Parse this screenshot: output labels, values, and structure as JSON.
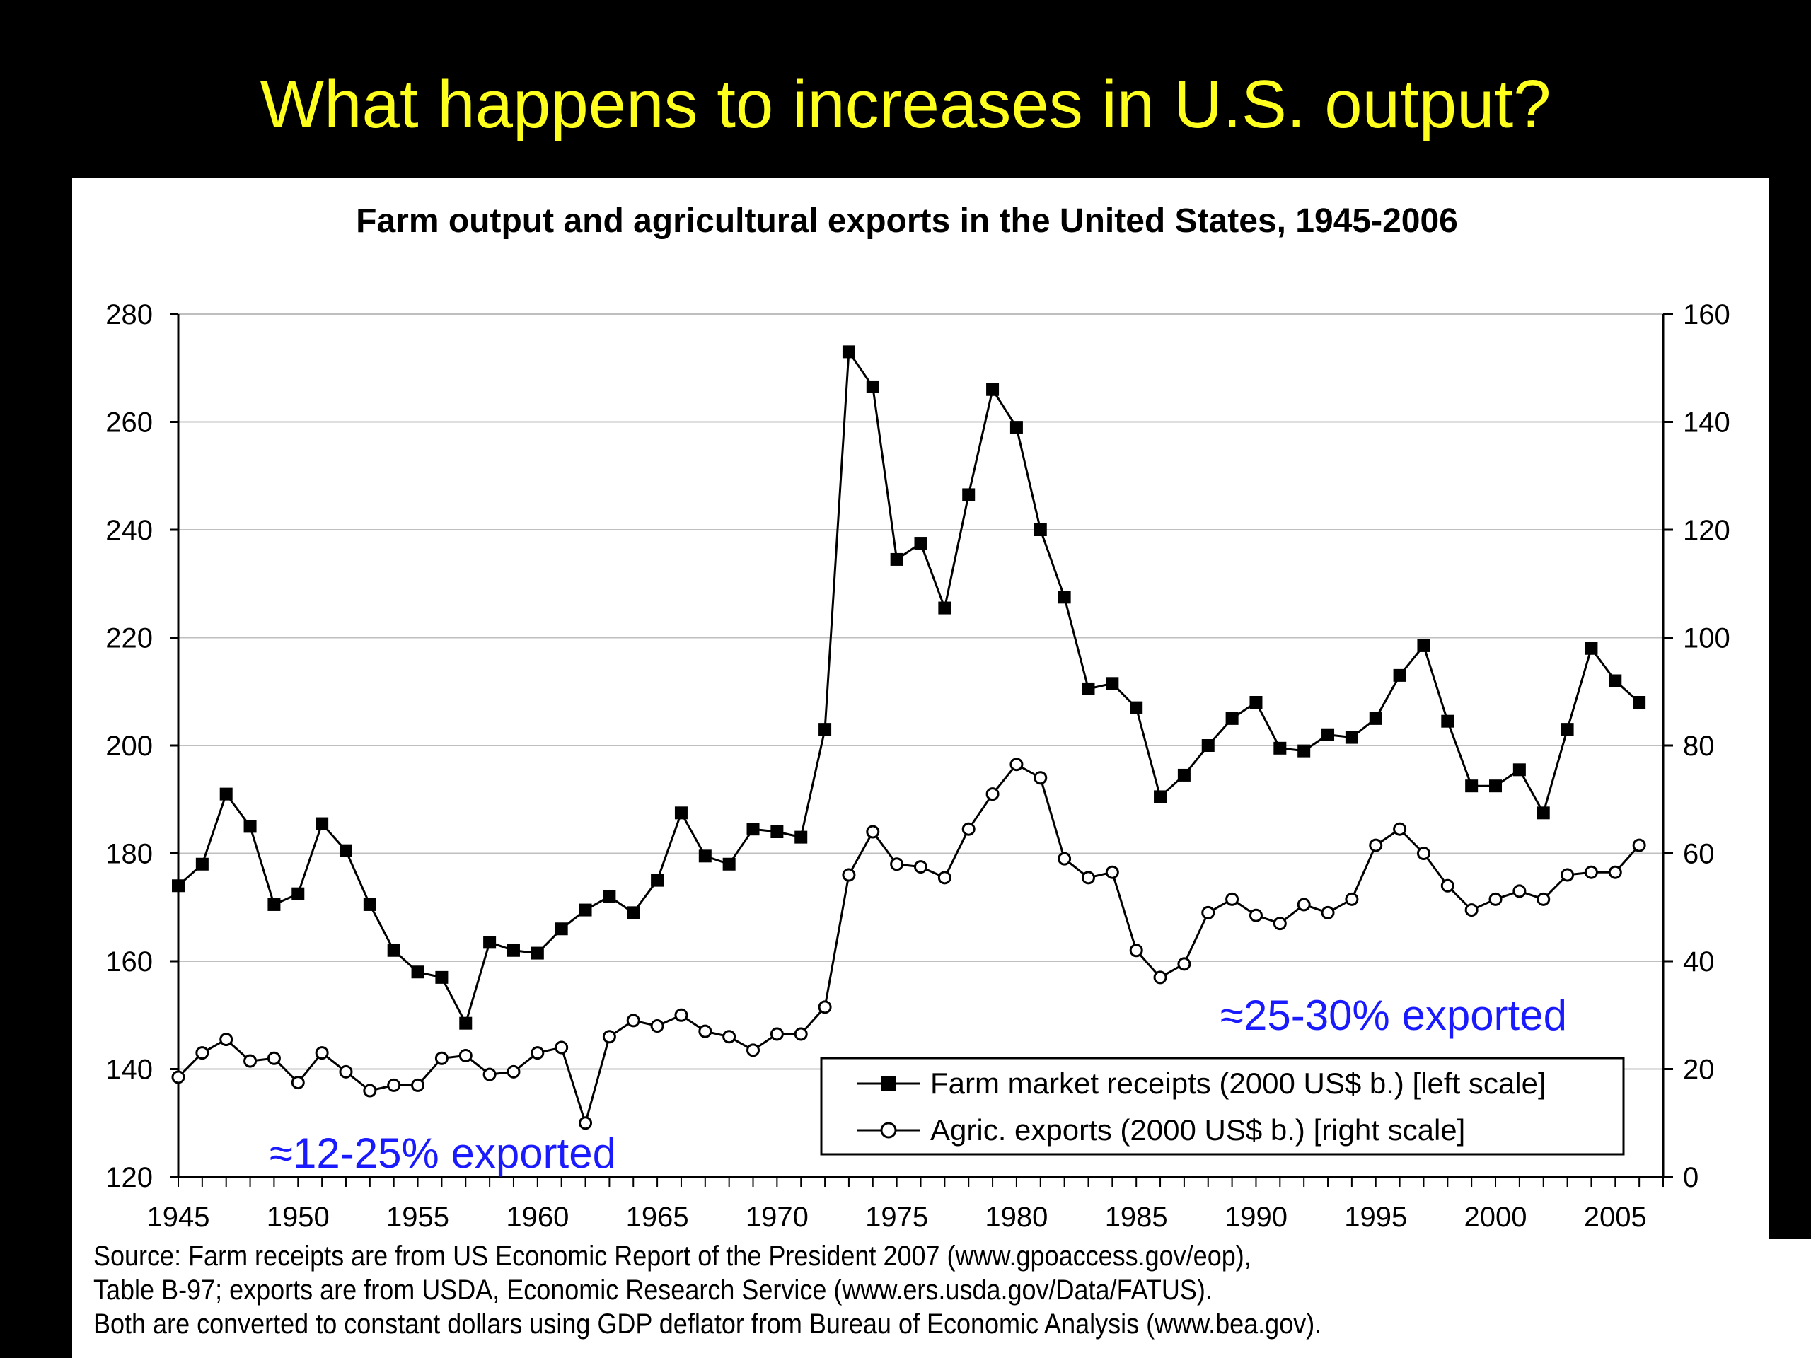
{
  "slide": {
    "title": "What happens to increases in U.S. output?",
    "source_lines": [
      "Source: Farm receipts are from US Economic Report of the President 2007 (www.gpoaccess.gov/eop),",
      "Table B-97; exports are from USDA, Economic Research Service (www.ers.usda.gov/Data/FATUS).",
      "Both are converted to constant dollars using GDP deflator from Bureau of Economic Analysis (www.bea.gov)."
    ]
  },
  "colors": {
    "background": "#000000",
    "title": "#ffff1e",
    "annotation": "#1a1aff",
    "series": "#000000",
    "grid": "#bfbfbf"
  },
  "chart_data": {
    "type": "line",
    "title": "Farm output and agricultural exports in the United States, 1945-2006",
    "xlim": [
      1945,
      2007
    ],
    "x_ticks": [
      1945,
      1950,
      1955,
      1960,
      1965,
      1970,
      1975,
      1980,
      1985,
      1990,
      1995,
      2000,
      2005
    ],
    "left_axis": {
      "ylim": [
        120,
        280
      ],
      "ticks": [
        120,
        140,
        160,
        180,
        200,
        220,
        240,
        260,
        280
      ]
    },
    "right_axis": {
      "ylim": [
        0,
        160
      ],
      "ticks": [
        0,
        20,
        40,
        60,
        80,
        100,
        120,
        140,
        160
      ]
    },
    "grid": true,
    "legend_position": "bottom-right",
    "series": [
      {
        "name": "Farm market receipts (2000 US$ b.) [left scale]",
        "axis": "left",
        "marker": "filled-square",
        "x": [
          1945,
          1946,
          1947,
          1948,
          1949,
          1950,
          1951,
          1952,
          1953,
          1954,
          1955,
          1956,
          1957,
          1958,
          1959,
          1960,
          1961,
          1962,
          1963,
          1964,
          1965,
          1966,
          1967,
          1968,
          1969,
          1970,
          1971,
          1972,
          1973,
          1974,
          1975,
          1976,
          1977,
          1978,
          1979,
          1980,
          1981,
          1982,
          1983,
          1984,
          1985,
          1986,
          1987,
          1988,
          1989,
          1990,
          1991,
          1992,
          1993,
          1994,
          1995,
          1996,
          1997,
          1998,
          1999,
          2000,
          2001,
          2002,
          2003,
          2004,
          2005,
          2006
        ],
        "values": [
          174,
          178,
          191,
          185,
          170.5,
          172.5,
          185.5,
          180.5,
          170.5,
          162,
          158,
          157,
          148.5,
          163.5,
          162,
          161.5,
          166,
          169.5,
          172,
          169,
          175,
          187.5,
          179.5,
          178,
          184.5,
          184,
          183,
          203,
          273,
          266.5,
          234.5,
          237.5,
          225.5,
          246.5,
          266,
          259,
          240,
          227.5,
          210.5,
          211.5,
          207,
          190.5,
          194.5,
          200,
          205,
          208,
          199.5,
          199,
          202,
          201.5,
          205,
          213,
          218.5,
          204.5,
          192.5,
          192.5,
          195.5,
          187.5,
          203,
          218,
          212,
          208
        ]
      },
      {
        "name": "Agric. exports (2000 US$ b.) [right scale]",
        "axis": "right",
        "marker": "open-circle",
        "x": [
          1945,
          1946,
          1947,
          1948,
          1949,
          1950,
          1951,
          1952,
          1953,
          1954,
          1955,
          1956,
          1957,
          1958,
          1959,
          1960,
          1961,
          1962,
          1963,
          1964,
          1965,
          1966,
          1967,
          1968,
          1969,
          1970,
          1971,
          1972,
          1973,
          1974,
          1975,
          1976,
          1977,
          1978,
          1979,
          1980,
          1981,
          1982,
          1983,
          1984,
          1985,
          1986,
          1987,
          1988,
          1989,
          1990,
          1991,
          1992,
          1993,
          1994,
          1995,
          1996,
          1997,
          1998,
          1999,
          2000,
          2001,
          2002,
          2003,
          2004,
          2005,
          2006
        ],
        "values": [
          18.5,
          23,
          25.5,
          21.5,
          22,
          17.5,
          23,
          19.5,
          16,
          17,
          17,
          22,
          22.5,
          19,
          19.5,
          23,
          24,
          10,
          26,
          29,
          28,
          30,
          27,
          26,
          23.5,
          26.5,
          26.5,
          31.5,
          56,
          64,
          58,
          57.5,
          55.5,
          64.5,
          71,
          76.5,
          74,
          59,
          55.5,
          56.5,
          42,
          37,
          39.5,
          49,
          51.5,
          48.5,
          47,
          50.5,
          49,
          51.5,
          61.5,
          64.5,
          60,
          54,
          49.5,
          51.5,
          53,
          51.5,
          56,
          56.5,
          56.5,
          61.5
        ]
      }
    ],
    "annotations": [
      "≈25-30% exported",
      "≈12-25% exported"
    ]
  }
}
